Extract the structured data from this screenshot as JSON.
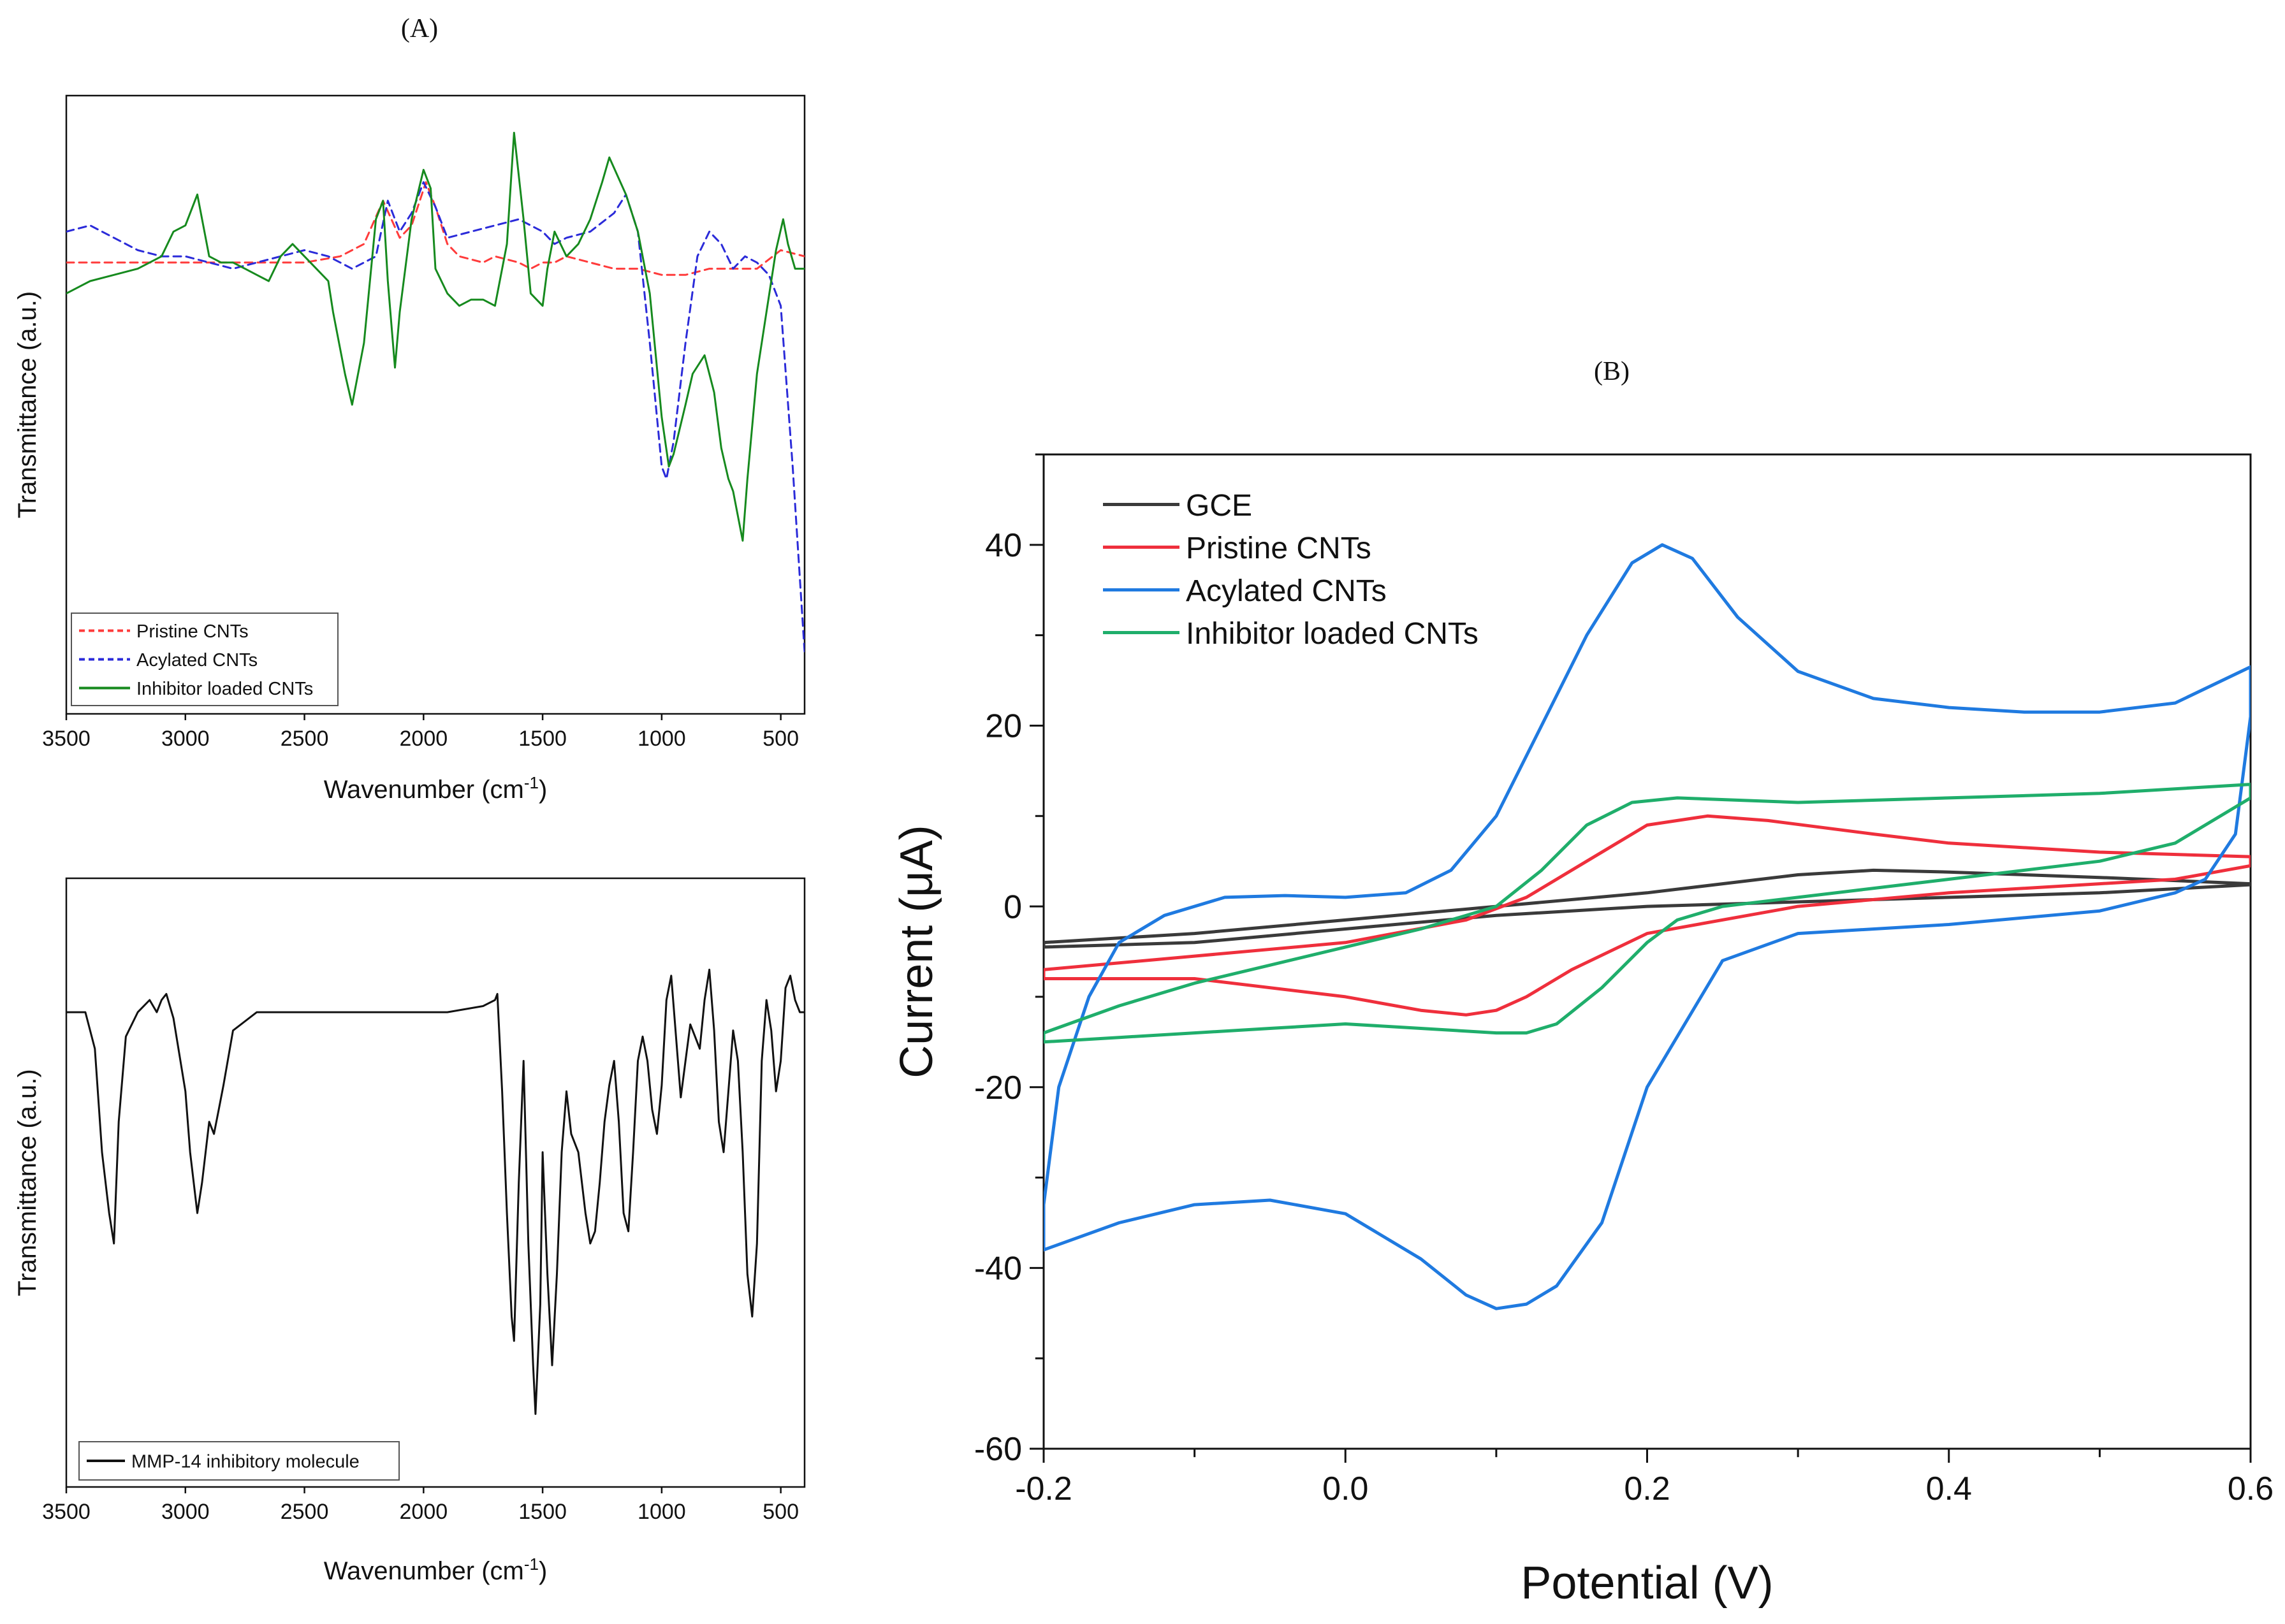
{
  "panels": {
    "a_label": "(A)",
    "b_label": "(B)"
  },
  "chart_data": [
    {
      "id": "ftir_cnts",
      "type": "line",
      "title": "",
      "xlabel": "Wavenumber (cm",
      "xlabel_sup": "-1",
      "xlabel_tail": ")",
      "ylabel": "Transmittance (a.u.)",
      "xlim": [
        3500,
        400
      ],
      "ylim": [
        0,
        100
      ],
      "xticks": [
        3500,
        3000,
        2500,
        2000,
        1500,
        1000,
        500
      ],
      "legend_position": "bottom-left",
      "series": [
        {
          "name": "Pristine CNTs",
          "color": "#ff3b3b",
          "dash": true,
          "x": [
            3500,
            3300,
            3100,
            2900,
            2700,
            2500,
            2350,
            2250,
            2170,
            2100,
            2050,
            1990,
            1950,
            1900,
            1850,
            1750,
            1700,
            1600,
            1550,
            1500,
            1450,
            1400,
            1300,
            1200,
            1100,
            1000,
            900,
            800,
            700,
            600,
            500,
            400
          ],
          "y": [
            73,
            73,
            73,
            73,
            73,
            73,
            74,
            76,
            83,
            77,
            79,
            86,
            82,
            76,
            74,
            73,
            74,
            73,
            72,
            73,
            73,
            74,
            73,
            72,
            72,
            71,
            71,
            72,
            72,
            72,
            75,
            74
          ]
        },
        {
          "name": "Acylated CNTs",
          "color": "#2b2bd9",
          "dash": true,
          "x": [
            3500,
            3400,
            3300,
            3200,
            3100,
            3000,
            2900,
            2800,
            2700,
            2600,
            2500,
            2400,
            2300,
            2200,
            2150,
            2100,
            2050,
            2000,
            1950,
            1900,
            1800,
            1700,
            1600,
            1500,
            1450,
            1400,
            1300,
            1200,
            1150,
            1100,
            1050,
            1000,
            980,
            950,
            900,
            850,
            800,
            750,
            700,
            650,
            600,
            550,
            500,
            450,
            400
          ],
          "y": [
            78,
            79,
            77,
            75,
            74,
            74,
            73,
            72,
            73,
            74,
            75,
            74,
            72,
            74,
            83,
            78,
            81,
            86,
            82,
            77,
            78,
            79,
            80,
            78,
            76,
            77,
            78,
            81,
            84,
            78,
            60,
            40,
            38,
            44,
            60,
            74,
            78,
            76,
            72,
            74,
            73,
            71,
            66,
            40,
            10
          ]
        },
        {
          "name": "Inhibitor loaded CNTs",
          "color": "#168a1e",
          "dash": false,
          "x": [
            3500,
            3400,
            3300,
            3200,
            3100,
            3050,
            3000,
            2950,
            2900,
            2850,
            2800,
            2750,
            2700,
            2650,
            2600,
            2550,
            2500,
            2450,
            2400,
            2380,
            2330,
            2300,
            2250,
            2200,
            2170,
            2150,
            2120,
            2100,
            2050,
            2000,
            1970,
            1950,
            1900,
            1850,
            1800,
            1750,
            1700,
            1650,
            1620,
            1580,
            1550,
            1500,
            1480,
            1450,
            1400,
            1350,
            1300,
            1250,
            1220,
            1150,
            1100,
            1050,
            1000,
            970,
            950,
            900,
            870,
            820,
            780,
            750,
            720,
            700,
            660,
            640,
            600,
            560,
            520,
            490,
            470,
            440,
            400
          ],
          "y": [
            68,
            70,
            71,
            72,
            74,
            78,
            79,
            84,
            74,
            73,
            73,
            72,
            71,
            70,
            74,
            76,
            74,
            72,
            70,
            65,
            55,
            50,
            60,
            80,
            83,
            70,
            56,
            65,
            80,
            88,
            85,
            72,
            68,
            66,
            67,
            67,
            66,
            76,
            94,
            80,
            68,
            66,
            72,
            78,
            74,
            76,
            80,
            86,
            90,
            84,
            78,
            68,
            48,
            40,
            42,
            50,
            55,
            58,
            52,
            43,
            38,
            36,
            28,
            38,
            55,
            65,
            75,
            80,
            76,
            72,
            72
          ]
        }
      ]
    },
    {
      "id": "ftir_inhibitor",
      "type": "line",
      "title": "",
      "xlabel": "Wavenumber (cm",
      "xlabel_sup": "-1",
      "xlabel_tail": ")",
      "ylabel": "Transmittance (a.u.)",
      "xlim": [
        3500,
        400
      ],
      "ylim": [
        0,
        100
      ],
      "xticks": [
        3500,
        3000,
        2500,
        2000,
        1500,
        1000,
        500
      ],
      "legend_position": "bottom-left",
      "series": [
        {
          "name": "MMP-14 inhibitory molecule",
          "color": "#111111",
          "dash": false,
          "x": [
            3500,
            3420,
            3380,
            3350,
            3320,
            3300,
            3280,
            3250,
            3200,
            3150,
            3120,
            3100,
            3080,
            3050,
            3000,
            2980,
            2950,
            2930,
            2900,
            2880,
            2860,
            2840,
            2800,
            2700,
            2500,
            2300,
            2100,
            1900,
            1750,
            1700,
            1690,
            1670,
            1650,
            1630,
            1620,
            1600,
            1580,
            1560,
            1540,
            1530,
            1510,
            1500,
            1480,
            1460,
            1440,
            1420,
            1400,
            1380,
            1350,
            1320,
            1300,
            1280,
            1260,
            1240,
            1220,
            1200,
            1180,
            1160,
            1140,
            1120,
            1100,
            1080,
            1060,
            1040,
            1020,
            1000,
            980,
            960,
            940,
            920,
            900,
            880,
            860,
            840,
            820,
            800,
            780,
            760,
            740,
            720,
            700,
            680,
            660,
            640,
            620,
            600,
            580,
            560,
            540,
            520,
            500,
            480,
            460,
            440,
            420,
            400
          ],
          "y": [
            78,
            78,
            72,
            55,
            45,
            40,
            60,
            74,
            78,
            80,
            78,
            80,
            81,
            77,
            65,
            55,
            45,
            50,
            60,
            58,
            62,
            66,
            75,
            78,
            78,
            78,
            78,
            78,
            79,
            80,
            81,
            65,
            45,
            28,
            24,
            50,
            70,
            40,
            20,
            12,
            30,
            55,
            35,
            20,
            35,
            55,
            65,
            58,
            55,
            45,
            40,
            42,
            50,
            60,
            66,
            70,
            60,
            45,
            42,
            55,
            70,
            74,
            70,
            62,
            58,
            66,
            80,
            84,
            74,
            64,
            70,
            76,
            74,
            72,
            80,
            85,
            75,
            60,
            55,
            65,
            75,
            70,
            55,
            35,
            28,
            40,
            70,
            80,
            75,
            65,
            70,
            82,
            84,
            80,
            78,
            78
          ]
        }
      ]
    },
    {
      "id": "cv",
      "type": "line",
      "title": "",
      "xlabel": "Potential (V)",
      "ylabel": "Current (μA)",
      "xlim": [
        -0.2,
        0.6
      ],
      "ylim": [
        -60,
        50
      ],
      "xticks": [
        "-0.2",
        "0.0",
        "0.2",
        "0.4",
        "0.6"
      ],
      "yticks": [
        "-60",
        "-40",
        "-20",
        "0",
        "20",
        "40"
      ],
      "legend_position": "top-left",
      "series": [
        {
          "name": "GCE",
          "color": "#3a3a3a",
          "x": [
            -0.2,
            -0.1,
            0.0,
            0.1,
            0.2,
            0.3,
            0.35,
            0.4,
            0.5,
            0.6,
            0.6,
            0.5,
            0.4,
            0.3,
            0.2,
            0.1,
            0.0,
            -0.1,
            -0.2
          ],
          "y": [
            -4,
            -3,
            -1.5,
            0,
            1.5,
            3.5,
            4,
            3.8,
            3.2,
            2.5,
            2.4,
            1.5,
            1,
            0.5,
            0,
            -1,
            -2.5,
            -4,
            -4.5
          ]
        },
        {
          "name": "Pristine CNTs",
          "color": "#ef2f3c",
          "x": [
            -0.2,
            -0.1,
            0.0,
            0.08,
            0.12,
            0.16,
            0.2,
            0.24,
            0.28,
            0.35,
            0.4,
            0.5,
            0.6,
            0.6,
            0.55,
            0.5,
            0.4,
            0.3,
            0.2,
            0.15,
            0.12,
            0.1,
            0.08,
            0.05,
            0.0,
            -0.1,
            -0.2
          ],
          "y": [
            -7,
            -5.5,
            -4,
            -1.5,
            1,
            5,
            9,
            10,
            9.5,
            8,
            7,
            6,
            5.5,
            4.5,
            3,
            2.5,
            1.5,
            0,
            -3,
            -7,
            -10,
            -11.5,
            -12,
            -11.5,
            -10,
            -8,
            -8
          ]
        },
        {
          "name": "Acylated CNTs",
          "color": "#1f7ae0",
          "x": [
            -0.2,
            -0.19,
            -0.17,
            -0.15,
            -0.12,
            -0.08,
            -0.04,
            0.0,
            0.04,
            0.07,
            0.1,
            0.13,
            0.16,
            0.19,
            0.21,
            0.23,
            0.26,
            0.3,
            0.35,
            0.4,
            0.45,
            0.5,
            0.55,
            0.6,
            0.6,
            0.59,
            0.57,
            0.55,
            0.5,
            0.4,
            0.3,
            0.25,
            0.2,
            0.17,
            0.14,
            0.12,
            0.1,
            0.08,
            0.05,
            0.0,
            -0.05,
            -0.1,
            -0.15,
            -0.2
          ],
          "y": [
            -33,
            -20,
            -10,
            -4,
            -1,
            1,
            1.2,
            1,
            1.5,
            4,
            10,
            20,
            30,
            38,
            40,
            38.5,
            32,
            26,
            23,
            22,
            21.5,
            21.5,
            22.5,
            26.5,
            21,
            8,
            3,
            1.5,
            -0.5,
            -2,
            -3,
            -6,
            -20,
            -35,
            -42,
            -44,
            -44.5,
            -43,
            -39,
            -34,
            -32.5,
            -33,
            -35,
            -38
          ]
        },
        {
          "name": "Inhibitor loaded CNTs",
          "color": "#1fae6b",
          "x": [
            -0.2,
            -0.15,
            -0.1,
            -0.05,
            0.0,
            0.05,
            0.1,
            0.13,
            0.16,
            0.19,
            0.22,
            0.3,
            0.4,
            0.5,
            0.6,
            0.6,
            0.55,
            0.5,
            0.4,
            0.3,
            0.25,
            0.22,
            0.2,
            0.17,
            0.14,
            0.12,
            0.1,
            0.05,
            0.0,
            -0.05,
            -0.1,
            -0.15,
            -0.2
          ],
          "y": [
            -14,
            -11,
            -8.5,
            -6.5,
            -4.5,
            -2.5,
            0,
            4,
            9,
            11.5,
            12,
            11.5,
            12,
            12.5,
            13.5,
            12,
            7,
            5,
            3,
            1,
            0,
            -1.5,
            -4,
            -9,
            -13,
            -14,
            -14,
            -13.5,
            -13,
            -13.5,
            -14,
            -14.5,
            -15
          ]
        }
      ]
    }
  ]
}
